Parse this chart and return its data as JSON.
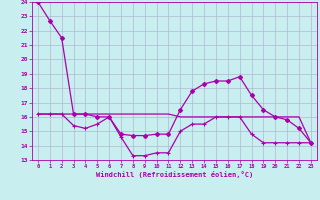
{
  "xlabel": "Windchill (Refroidissement éolien,°C)",
  "xlim": [
    -0.5,
    23.5
  ],
  "ylim": [
    13,
    24
  ],
  "yticks": [
    13,
    14,
    15,
    16,
    17,
    18,
    19,
    20,
    21,
    22,
    23,
    24
  ],
  "xticks": [
    0,
    1,
    2,
    3,
    4,
    5,
    6,
    7,
    8,
    9,
    10,
    11,
    12,
    13,
    14,
    15,
    16,
    17,
    18,
    19,
    20,
    21,
    22,
    23
  ],
  "bg_color": "#c8eef0",
  "grid_color": "#aaaacc",
  "line_color": "#aa00aa",
  "line1_diamond": {
    "x": [
      0,
      1,
      2,
      3,
      4,
      5,
      6,
      7,
      8,
      9,
      10,
      11,
      12,
      13,
      14,
      15,
      16,
      17,
      18,
      19,
      20,
      21,
      22,
      23
    ],
    "y": [
      24,
      22.7,
      21.5,
      16.2,
      16.2,
      16.0,
      16.0,
      14.8,
      14.7,
      14.7,
      14.8,
      14.8,
      16.5,
      17.8,
      18.3,
      18.5,
      18.5,
      18.8,
      17.5,
      16.5,
      16.0,
      15.8,
      15.2,
      14.2
    ]
  },
  "line2_plus": {
    "x": [
      0,
      1,
      2,
      3,
      4,
      5,
      6,
      7,
      8,
      9,
      10,
      11,
      12,
      13,
      14,
      15,
      16,
      17,
      18,
      19,
      20,
      21,
      22,
      23
    ],
    "y": [
      16.2,
      16.2,
      16.2,
      15.4,
      15.2,
      15.5,
      16.0,
      14.6,
      13.3,
      13.3,
      13.5,
      13.5,
      15.0,
      15.5,
      15.5,
      16.0,
      16.0,
      16.0,
      14.8,
      14.2,
      14.2,
      14.2,
      14.2,
      14.2
    ]
  },
  "line3_flat": {
    "x": [
      0,
      1,
      2,
      3,
      4,
      5,
      6,
      7,
      8,
      9,
      10,
      11,
      12,
      13,
      14,
      15,
      16,
      17,
      18,
      19,
      20,
      21,
      22,
      23
    ],
    "y": [
      16.2,
      16.2,
      16.2,
      16.2,
      16.2,
      16.2,
      16.2,
      16.2,
      16.2,
      16.2,
      16.2,
      16.2,
      16.0,
      16.0,
      16.0,
      16.0,
      16.0,
      16.0,
      16.0,
      16.0,
      16.0,
      16.0,
      16.0,
      14.2
    ]
  }
}
